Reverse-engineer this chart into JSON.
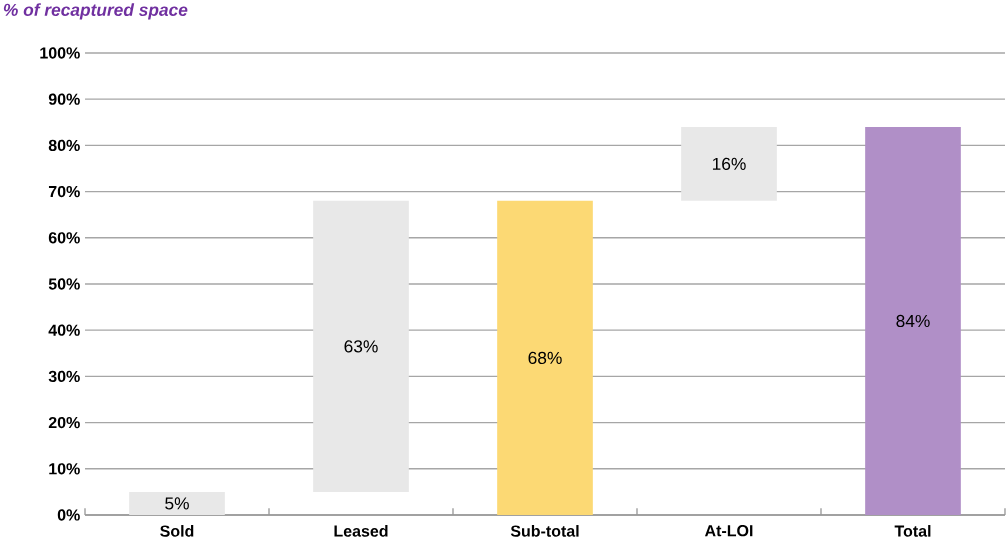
{
  "chart_data": {
    "type": "bar",
    "title": "% of recaptured space",
    "categories": [
      "Sold",
      "Leased",
      "Sub-total",
      "At-LOI",
      "Total"
    ],
    "values": [
      5,
      63,
      68,
      16,
      84
    ],
    "base": [
      0,
      5,
      0,
      68,
      0
    ],
    "colors": [
      "#e8e8e8",
      "#e8e8e8",
      "#fcd974",
      "#e8e8e8",
      "#b08fc7"
    ],
    "value_labels": [
      "5%",
      "63%",
      "68%",
      "16%",
      "84%"
    ],
    "ylim": [
      0,
      100
    ],
    "yticks": [
      {
        "value": 0,
        "label": "0%"
      },
      {
        "value": 10,
        "label": "10%"
      },
      {
        "value": 20,
        "label": "20%"
      },
      {
        "value": 30,
        "label": "30%"
      },
      {
        "value": 40,
        "label": "40%"
      },
      {
        "value": 50,
        "label": "50%"
      },
      {
        "value": 60,
        "label": "60%"
      },
      {
        "value": 70,
        "label": "70%"
      },
      {
        "value": 80,
        "label": "80%"
      },
      {
        "value": 90,
        "label": "90%"
      },
      {
        "value": 100,
        "label": "100%"
      }
    ],
    "grid": "y"
  }
}
